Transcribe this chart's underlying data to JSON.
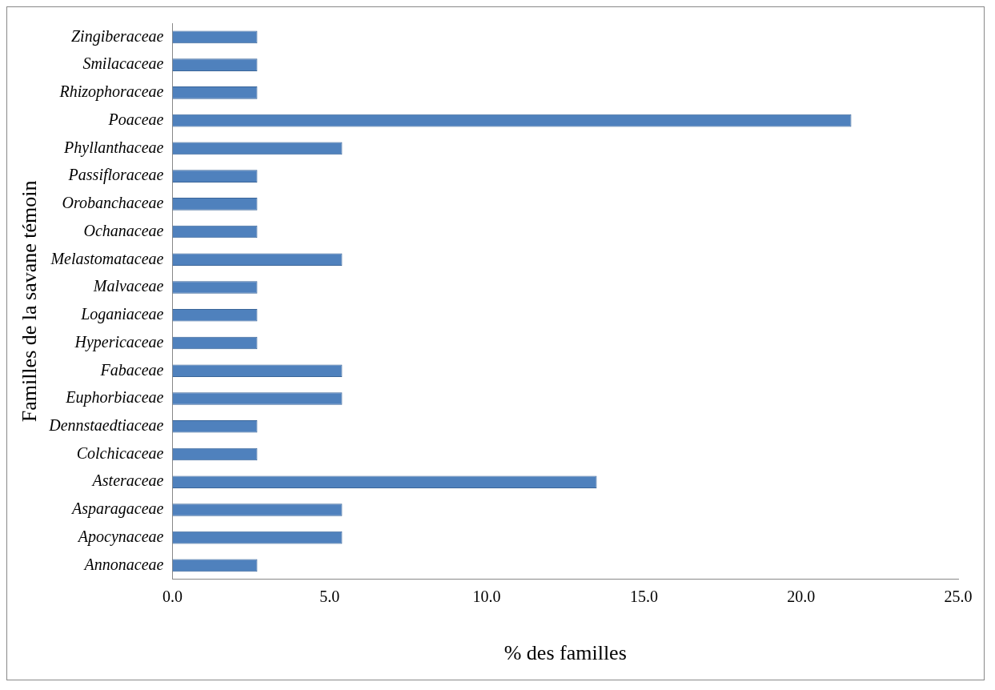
{
  "chart_data": {
    "type": "bar",
    "orientation": "horizontal",
    "xlabel": "% des familles",
    "ylabel": "Familles de la savane témoin",
    "categories": [
      "Zingiberaceae",
      "Smilacaceae",
      "Rhizophoraceae",
      "Poaceae",
      "Phyllanthaceae",
      "Passifloraceae",
      "Orobanchaceae",
      "Ochanaceae",
      "Melastomataceae",
      "Malvaceae",
      "Loganiaceae",
      "Hypericaceae",
      "Fabaceae",
      "Euphorbiaceae",
      "Dennstaedtiaceae",
      "Colchicaceae",
      "Asteraceae",
      "Asparagaceae",
      "Apocynaceae",
      "Annonaceae"
    ],
    "values": [
      2.7,
      2.7,
      2.7,
      21.6,
      5.4,
      2.7,
      2.7,
      2.7,
      5.4,
      2.7,
      2.7,
      2.7,
      5.4,
      5.4,
      2.7,
      2.7,
      13.5,
      5.4,
      5.4,
      2.7
    ],
    "color": "#4f81bd",
    "xlim": [
      0,
      25
    ],
    "xticks": [
      {
        "value": 0,
        "label": "0.0"
      },
      {
        "value": 5,
        "label": "5.0"
      },
      {
        "value": 10,
        "label": "10.0"
      },
      {
        "value": 15,
        "label": "15.0"
      },
      {
        "value": 20,
        "label": "20.0"
      },
      {
        "value": 25,
        "label": "25.0"
      }
    ],
    "grid": false,
    "legend": false
  }
}
